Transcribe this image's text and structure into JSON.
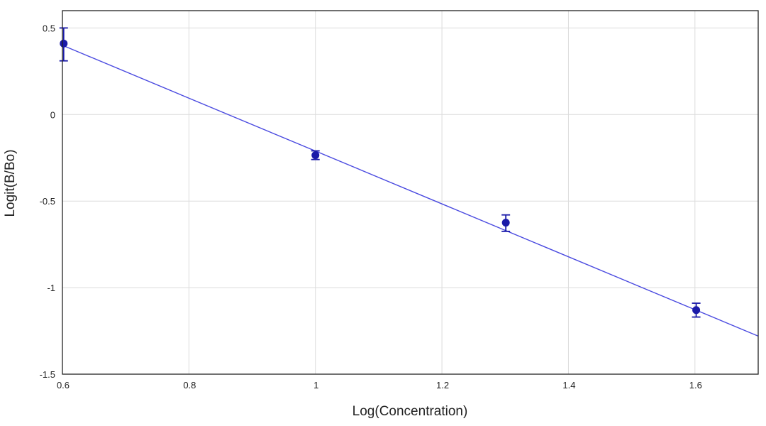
{
  "chart_data": {
    "type": "scatter",
    "title": "",
    "xlabel": "Log(Concentration)",
    "ylabel": "Logit(B/Bo)",
    "xlim": [
      0.6,
      1.7
    ],
    "ylim": [
      -1.5,
      0.6
    ],
    "x_ticks": [
      "0.6",
      "0.8",
      "1",
      "1.2",
      "1.4",
      "1.6"
    ],
    "y_ticks": [
      "0.5",
      "0",
      "-0.5",
      "-1",
      "-1.5"
    ],
    "grid": true,
    "legend": "none",
    "series": [
      {
        "type": "scatter",
        "points": [
          {
            "x": 0.602,
            "y": 0.41,
            "err_low": 0.1,
            "err_high": 0.09
          },
          {
            "x": 1.0,
            "y": -0.235,
            "err_low": 0.025,
            "err_high": 0.025
          },
          {
            "x": 1.301,
            "y": -0.625,
            "err_low": 0.05,
            "err_high": 0.045
          },
          {
            "x": 1.602,
            "y": -1.13,
            "err_low": 0.04,
            "err_high": 0.04
          }
        ]
      },
      {
        "type": "line",
        "x": [
          0.6,
          1.7
        ],
        "y": [
          0.4,
          -1.28
        ]
      }
    ],
    "colors": {
      "data": "#1a1aa8",
      "fit_line": "#4a4ae0",
      "grid": "#dcdcdc",
      "axis": "#222222"
    }
  }
}
